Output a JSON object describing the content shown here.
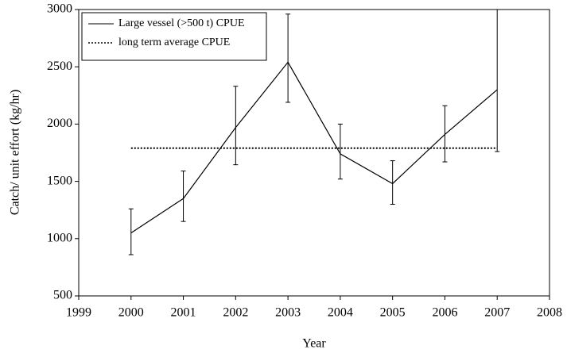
{
  "chart_data": {
    "type": "line",
    "xlabel": "Year",
    "ylabel": "Catch/ unit effort (kg/hr)",
    "xlim": [
      1999,
      2008
    ],
    "xticks": [
      1999,
      2000,
      2001,
      2002,
      2003,
      2004,
      2005,
      2006,
      2007,
      2008
    ],
    "ylim": [
      500,
      3000
    ],
    "yticks": [
      500,
      1000,
      1500,
      2000,
      2500,
      3000
    ],
    "legend": "upper left",
    "series": [
      {
        "name": "Large vessel (>500 t) CPUE",
        "color": "#000000",
        "dash": false,
        "x": [
          2000,
          2001,
          2002,
          2003,
          2004,
          2005,
          2006,
          2007
        ],
        "values": [
          1050,
          1350,
          1970,
          2540,
          1740,
          1480,
          1910,
          2300
        ],
        "lower": [
          860,
          1150,
          1645,
          2190,
          1520,
          1300,
          1670,
          1760
        ],
        "upper": [
          1260,
          1590,
          2330,
          2960,
          2000,
          1680,
          2160,
          3000
        ]
      },
      {
        "name": "long term average CPUE",
        "color": "#000000",
        "dash": true,
        "x": [
          2000,
          2007
        ],
        "values": [
          1790,
          1790
        ]
      }
    ]
  }
}
